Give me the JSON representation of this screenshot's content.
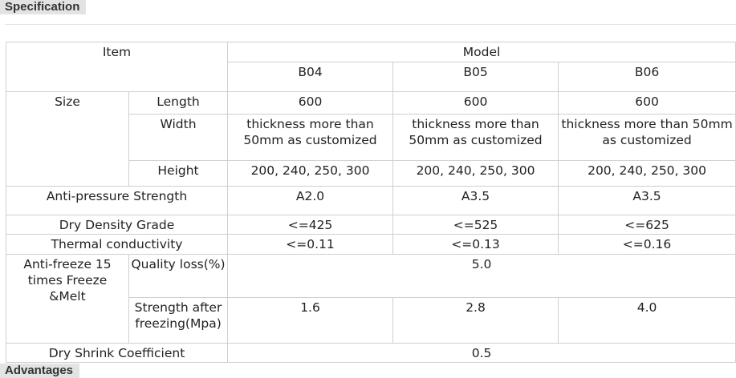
{
  "headings": {
    "specification": "Specification",
    "advantages": "Advantages"
  },
  "table": {
    "item_header": "Item",
    "model_header": "Model",
    "models": [
      "B04",
      "B05",
      "B06"
    ],
    "size": {
      "label": "Size",
      "length": {
        "label": "Length",
        "values": [
          "600",
          "600",
          "600"
        ]
      },
      "width": {
        "label": "Width",
        "values": [
          "thickness more than 50mm as customized",
          "thickness more than 50mm as customized",
          "thickness more than 50mm as customized"
        ]
      },
      "height": {
        "label": "Height",
        "values": [
          "200, 240, 250, 300",
          "200, 240, 250, 300",
          "200, 240, 250, 300"
        ]
      }
    },
    "anti_pressure": {
      "label": "Anti-pressure Strength",
      "values": [
        "A2.0",
        "A3.5",
        "A3.5"
      ]
    },
    "dry_density": {
      "label": "Dry Density Grade",
      "values": [
        "<=425",
        "<=525",
        "<=625"
      ]
    },
    "thermal": {
      "label": "Thermal conductivity",
      "values": [
        "<=0.11",
        "<=0.13",
        "<=0.16"
      ]
    },
    "anti_freeze": {
      "label": "Anti-freeze 15 times Freeze &Melt",
      "quality": {
        "label": "Quality loss(%)",
        "value": "5.0"
      },
      "strength": {
        "label": "Strength after freezing(Mpa)",
        "values": [
          "1.6",
          "2.8",
          "4.0"
        ]
      }
    },
    "dry_shrink": {
      "label": "Dry Shrink Coefficient",
      "value": "0.5"
    }
  }
}
